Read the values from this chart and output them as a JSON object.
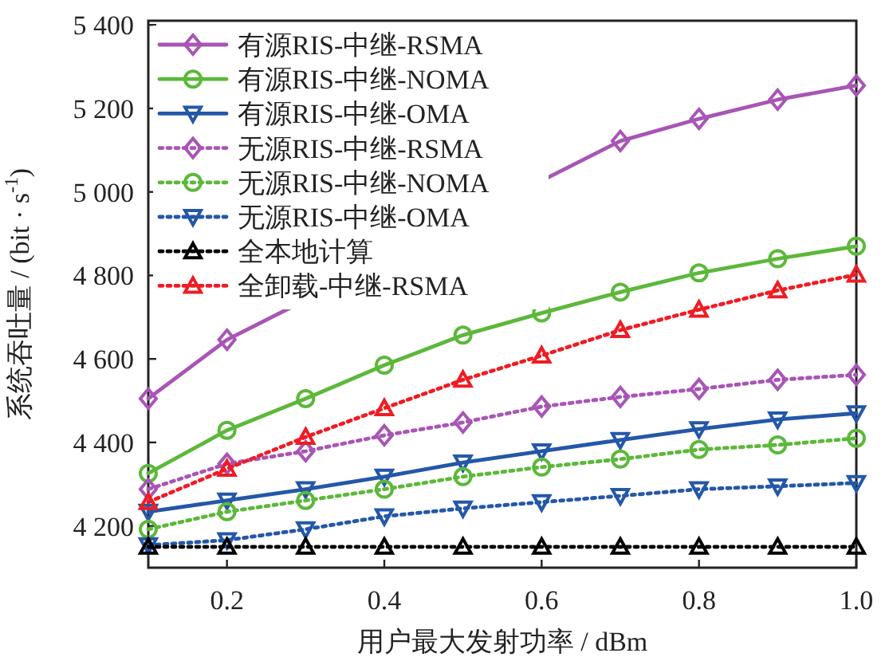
{
  "chart_data": {
    "type": "line",
    "xlabel": "用户最大发射功率 / dBm",
    "ylabel": "系统吞吐量 / (bit · s$^{-1}$)",
    "x": [
      0.1,
      0.2,
      0.3,
      0.4,
      0.5,
      0.6,
      0.7,
      0.8,
      0.9,
      1.0
    ],
    "xlim": [
      0.1,
      1.0
    ],
    "ylim": [
      4100,
      5410
    ],
    "xticks": [
      0.2,
      0.4,
      0.6,
      0.8,
      {
        "value": 1.0,
        "label": "1.0"
      }
    ],
    "yticks": [
      {
        "value": 4200,
        "label": "4 200"
      },
      {
        "value": 4400,
        "label": "4 400"
      },
      {
        "value": 4600,
        "label": "4 600"
      },
      {
        "value": 4800,
        "label": "4 800"
      },
      {
        "value": 5000,
        "label": "5 000"
      },
      {
        "value": 5200,
        "label": "5 200"
      },
      {
        "value": 5400,
        "label": "5 400"
      }
    ],
    "grid": false,
    "legend": "top left",
    "series": [
      {
        "name": "有源RIS-中继-RSMA",
        "color": "#a855b5",
        "marker": "diamond",
        "line_style": "solid",
        "values": [
          4505,
          4646,
          null,
          null,
          null,
          null,
          5122,
          5175,
          5221,
          5255
        ]
      },
      {
        "name": "有源RIS-中继-NOMA",
        "color": "#5cb83a",
        "marker": "circle",
        "line_style": "solid",
        "values": [
          4326,
          4429,
          4505,
          4585,
          4657,
          4710,
          4760,
          4806,
          4840,
          4870
        ]
      },
      {
        "name": "有源RIS-中继-OMA",
        "color": "#2457a8",
        "marker": "triangle-down",
        "line_style": "solid",
        "values": [
          4234,
          4261,
          4288,
          4318,
          4352,
          4379,
          4406,
          4432,
          4455,
          4470
        ]
      },
      {
        "name": "无源RIS-中继-RSMA",
        "color": "#a855b5",
        "marker": "diamond",
        "line_style": "dotted",
        "values": [
          4288,
          4349,
          4379,
          4417,
          4448,
          4486,
          4509,
          4528,
          4550,
          4562
        ]
      },
      {
        "name": "无源RIS-中继-NOMA",
        "color": "#5cb83a",
        "marker": "circle",
        "line_style": "dotted",
        "values": [
          4192,
          4234,
          4261,
          4288,
          4318,
          4341,
          4360,
          4383,
          4394,
          4410
        ]
      },
      {
        "name": "无源RIS-中继-OMA",
        "color": "#2457a8",
        "marker": "triangle-down",
        "line_style": "dotted",
        "values": [
          4154,
          4166,
          4192,
          4223,
          4242,
          4257,
          4272,
          4288,
          4295,
          4303
        ]
      },
      {
        "name": "全本地计算",
        "color": "#000000",
        "marker": "triangle",
        "line_style": "dotted",
        "values": [
          4150,
          4150,
          4150,
          4150,
          4150,
          4150,
          4150,
          4150,
          4150,
          4150
        ]
      },
      {
        "name": "全卸载-中继-RSMA",
        "color": "#ee1c24",
        "marker": "triangle",
        "line_style": "dotted",
        "values": [
          4257,
          4337,
          4413,
          4482,
          4550,
          4608,
          4669,
          4718,
          4764,
          4802
        ]
      }
    ]
  }
}
